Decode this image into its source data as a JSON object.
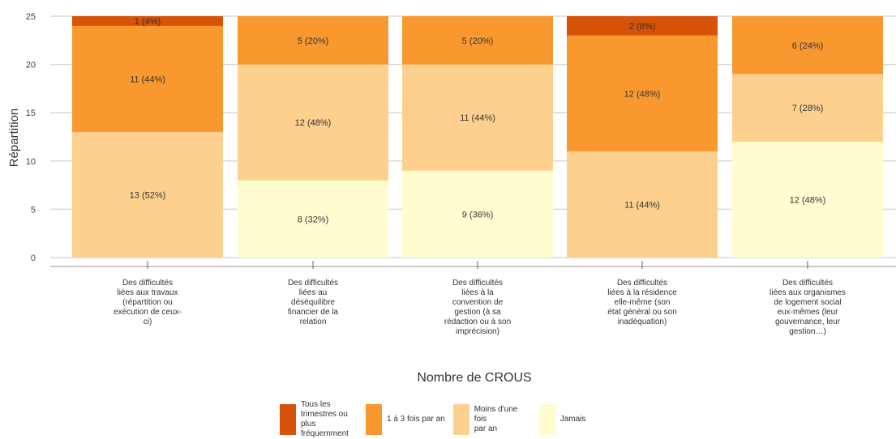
{
  "chart_data": {
    "type": "bar",
    "stacked": true,
    "ylabel": "Répartition",
    "xlabel": "Nombre de CROUS",
    "ylim": [
      0,
      25
    ],
    "yticks": [
      0,
      5,
      10,
      15,
      20,
      25
    ],
    "grid": true,
    "legend_position": "bottom",
    "categories": [
      "Des difficultés liées aux travaux (répartition ou exécution de ceux-ci)",
      "Des difficultés liées au déséquilibre financier de la relation",
      "Des difficultés liées à la convention de gestion (à sa rédaction ou à son imprécision)",
      "Des difficultés liées à la résidence elle-même (son état général ou son inadéquation)",
      "Des difficultés liées aux organismes de logement social eux-mêmes (leur gouvernance, leur gestion…)"
    ],
    "category_lines": [
      [
        "Des difficultés",
        "liées aux travaux",
        "(répartition ou",
        "exécution de ceux-",
        "ci)"
      ],
      [
        "Des difficultés",
        "liées au",
        "déséquilibre",
        "financier de la",
        "relation"
      ],
      [
        "Des difficultés",
        "liées à la",
        "convention de",
        "gestion (à sa",
        "rédaction ou à son",
        "imprécision)"
      ],
      [
        "Des difficultés",
        "liées à la résidence",
        "elle-même (son",
        "état général ou son",
        "inadéquation)"
      ],
      [
        "Des difficultés",
        "liées aux organismes",
        "de logement social",
        "eux-mêmes (leur",
        "gouvernance, leur",
        "gestion…)"
      ]
    ],
    "series": [
      {
        "name": "Jamais",
        "color": "#fffdd0",
        "values": [
          0,
          8,
          9,
          0,
          12
        ],
        "labels": [
          "",
          "8 (32%)",
          "9 (36%)",
          "",
          "12 (48%)"
        ]
      },
      {
        "name": "Moins d'une fois par an",
        "color": "#fdd08e",
        "values": [
          13,
          12,
          11,
          11,
          7
        ],
        "labels": [
          "13 (52%)",
          "12 (48%)",
          "11 (44%)",
          "11 (44%)",
          "7 (28%)"
        ]
      },
      {
        "name": "1 à 3 fois par an",
        "color": "#f8982f",
        "values": [
          11,
          5,
          5,
          12,
          6
        ],
        "labels": [
          "11 (44%)",
          "5 (20%)",
          "5 (20%)",
          "12 (48%)",
          "6 (24%)"
        ]
      },
      {
        "name": "Tous les trimestres ou plus fréquemment",
        "color": "#d65307",
        "values": [
          1,
          0,
          0,
          2,
          0
        ],
        "labels": [
          "1 (4%)",
          "",
          "",
          "2 (8%)",
          ""
        ]
      }
    ]
  },
  "legend": {
    "items": [
      {
        "label": "Tous les\ntrimestres ou plus\nfréquemment",
        "color": "#d65307"
      },
      {
        "label": "1 à 3 fois par an",
        "color": "#f8982f"
      },
      {
        "label": "Moins d'une fois\npar an",
        "color": "#fdd08e"
      },
      {
        "label": "Jamais",
        "color": "#fffdd0"
      }
    ]
  }
}
